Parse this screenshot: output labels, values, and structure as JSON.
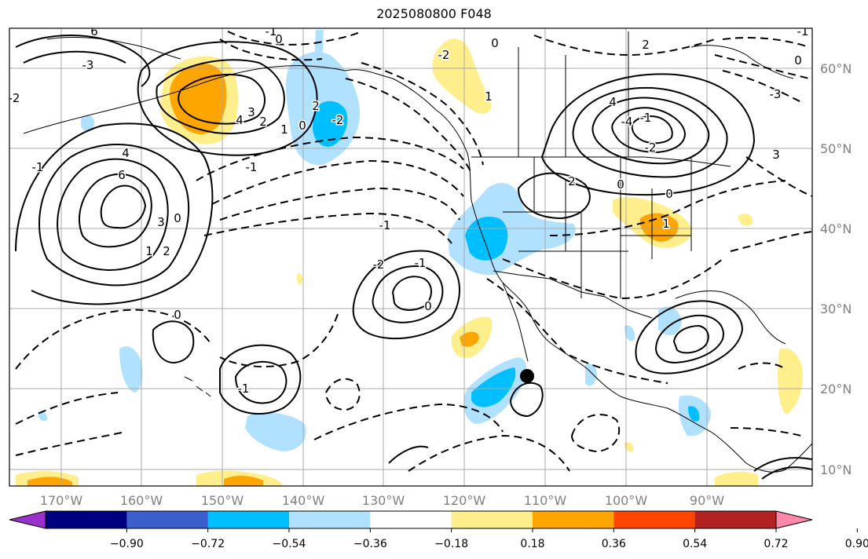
{
  "title": "2025080800 F048",
  "map": {
    "lon_ticks": [
      "170°W",
      "160°W",
      "150°W",
      "140°W",
      "130°W",
      "120°W",
      "110°W",
      "100°W",
      "90°W"
    ],
    "lat_ticks": [
      "60°N",
      "50°N",
      "40°N",
      "30°N",
      "20°N",
      "10°N"
    ],
    "gridlines": true,
    "coastline_color": "#000000",
    "contour_color": "#000000",
    "contour_labels": [
      "6",
      "4",
      "3",
      "2",
      "0",
      "1",
      "-1",
      "-2",
      "-3",
      "6",
      "4",
      "3",
      "2",
      "1",
      "0",
      "-2",
      "2",
      "-1",
      "0",
      "-1",
      "-2",
      "0",
      "1",
      "2",
      "4",
      "-4",
      "-1",
      "-2",
      "3",
      "-3",
      "-1",
      "0",
      "2",
      "0",
      "0",
      "1",
      "-1",
      "-2",
      "-1",
      "0",
      "0",
      "-1"
    ],
    "marker": {
      "type": "filled-circle",
      "color": "#000000"
    }
  },
  "colorbar": {
    "ticks": [
      "−0.90",
      "−0.72",
      "−0.54",
      "−0.36",
      "−0.18",
      "0.18",
      "0.36",
      "0.54",
      "0.72",
      "0.90"
    ],
    "colors": [
      "#9932cc",
      "#000080",
      "#3a5fcd",
      "#00bfff",
      "#b0e2ff",
      "#ffffff",
      "#ffee8c",
      "#ffa500",
      "#ff4500",
      "#b22222",
      "#ff88aa"
    ],
    "extend": "both"
  }
}
